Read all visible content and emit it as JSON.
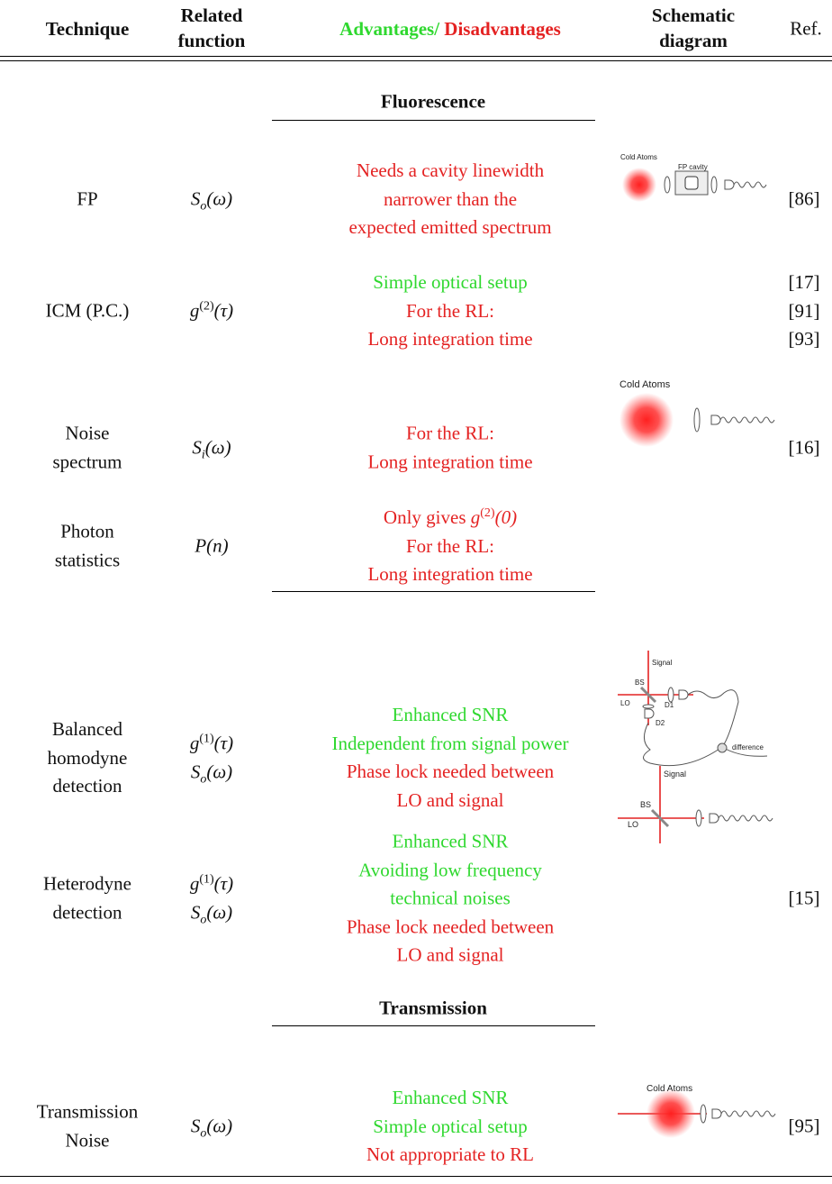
{
  "header": {
    "technique": "Technique",
    "function": [
      "Related",
      "function"
    ],
    "advantages": "Advantages/",
    "advantages_color": "#2fd82f",
    "disadvantages": "Disadvantages",
    "disadvantages_color": "#e42222",
    "schematic": [
      "Schematic",
      "diagram"
    ],
    "ref": "Ref."
  },
  "sections": [
    {
      "title": "Fluorescence",
      "rows": [
        {
          "technique": [
            "FP"
          ],
          "function": [
            {
              "base": "S",
              "sub": "o",
              "arg": "(ω)"
            }
          ],
          "lines": [
            {
              "text": "Needs a cavity linewidth",
              "color": "#e42222"
            },
            {
              "text": "narrower than the",
              "color": "#e42222"
            },
            {
              "text": "expected emitted spectrum",
              "color": "#e42222"
            }
          ],
          "refs": [
            "[86]"
          ],
          "diagram": [
            "Cold Atoms",
            "FP cavity"
          ]
        },
        {
          "technique": [
            "ICM (P.C.)"
          ],
          "function": [
            {
              "base": "g",
              "sup": "(2)",
              "arg": "(τ)"
            }
          ],
          "lines": [
            {
              "text": "Simple optical setup",
              "color": "#2fd82f"
            },
            {
              "text": "For the RL:",
              "color": "#e42222"
            },
            {
              "text": "Long integration time",
              "color": "#e42222"
            }
          ],
          "refs": [
            "[17]",
            "[91]",
            "[93]"
          ]
        },
        {
          "technique": [
            "Noise",
            "spectrum"
          ],
          "function": [
            {
              "base": "S",
              "sub": "i",
              "arg": "(ω)"
            }
          ],
          "lines": [
            {
              "text": "For the RL:",
              "color": "#e42222"
            },
            {
              "text": "Long integration time",
              "color": "#e42222"
            }
          ],
          "refs": [
            "[16]"
          ],
          "diagram": [
            "Cold Atoms"
          ]
        },
        {
          "technique": [
            "Photon",
            "statistics"
          ],
          "function": [
            {
              "base": "P",
              "arg": "(n)"
            }
          ],
          "lines": [
            {
              "text": "Only gives ",
              "math": {
                "base": "g",
                "sup": "(2)",
                "arg": "(0)"
              },
              "color": "#e42222"
            },
            {
              "text": "For the RL:",
              "color": "#e42222"
            },
            {
              "text": "Long integration time",
              "color": "#e42222"
            }
          ],
          "refs": []
        }
      ]
    },
    {
      "rows": [
        {
          "technique": [
            "Balanced",
            "homodyne",
            "detection"
          ],
          "function": [
            {
              "base": "g",
              "sup": "(1)",
              "arg": "(τ)"
            },
            {
              "base": "S",
              "sub": "o",
              "arg": "(ω)"
            }
          ],
          "lines": [
            {
              "text": "Enhanced SNR",
              "color": "#2fd82f"
            },
            {
              "text": "Independent from signal power",
              "color": "#2fd82f"
            },
            {
              "text": "Phase lock needed between",
              "color": "#e42222"
            },
            {
              "text": "LO and signal",
              "color": "#e42222"
            }
          ],
          "refs": [],
          "diagram": [
            "Signal",
            "BS",
            "LO",
            "D1",
            "D2",
            "difference"
          ]
        },
        {
          "technique": [
            "Heterodyne",
            "detection"
          ],
          "function": [
            {
              "base": "g",
              "sup": "(1)",
              "arg": "(τ)"
            },
            {
              "base": "S",
              "sub": "o",
              "arg": "(ω)"
            }
          ],
          "lines": [
            {
              "text": "Enhanced SNR",
              "color": "#2fd82f"
            },
            {
              "text": "Avoiding low frequency",
              "color": "#2fd82f"
            },
            {
              "text": "technical noises",
              "color": "#2fd82f"
            },
            {
              "text": "Phase lock needed between",
              "color": "#e42222"
            },
            {
              "text": "LO and signal",
              "color": "#e42222"
            }
          ],
          "refs": [
            "[15]"
          ],
          "diagram": [
            "Signal",
            "BS",
            "LO"
          ]
        }
      ]
    },
    {
      "title": "Transmission",
      "rows": [
        {
          "technique": [
            "Transmission",
            "Noise"
          ],
          "function": [
            {
              "base": "S",
              "sub": "o",
              "arg": "(ω)"
            }
          ],
          "lines": [
            {
              "text": "Enhanced SNR",
              "color": "#2fd82f"
            },
            {
              "text": "Simple optical setup",
              "color": "#2fd82f"
            },
            {
              "text": "Not appropriate to RL",
              "color": "#e42222"
            }
          ],
          "refs": [
            "[95]"
          ],
          "diagram": [
            "Cold Atoms"
          ]
        }
      ]
    }
  ]
}
